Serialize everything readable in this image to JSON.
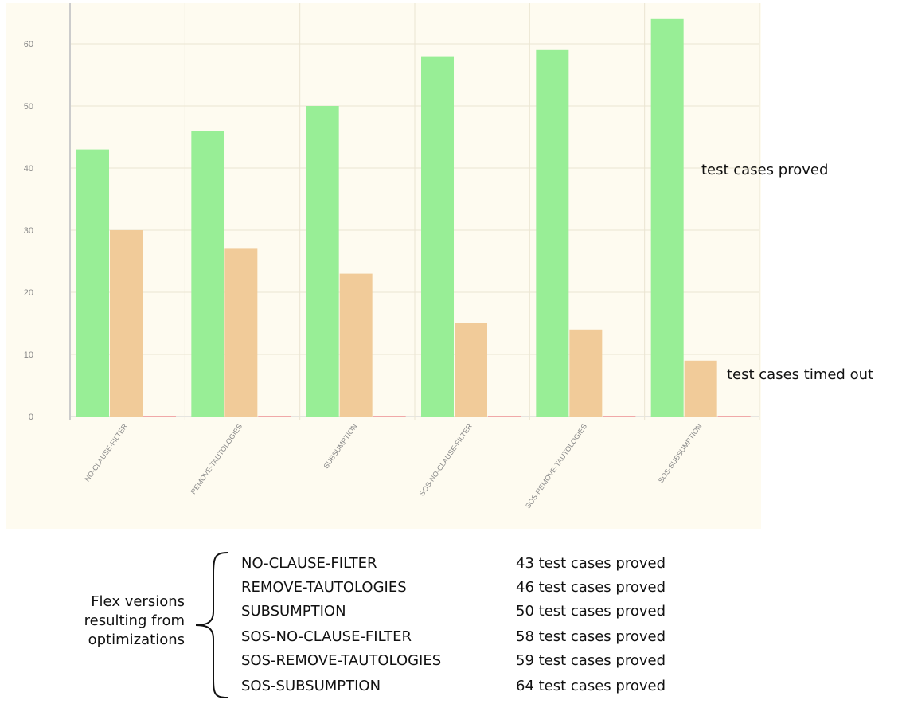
{
  "chart_data": {
    "type": "bar",
    "categories": [
      "NO-CLAUSE-FILTER",
      "REMOVE-TAUTOLOGIES",
      "SUBSUMPTION",
      "SOS-NO-CLAUSE-FILTER",
      "SOS-REMOVE-TAUTOLOGIES",
      "SOS-SUBSUMPTION"
    ],
    "series": [
      {
        "name": "test cases proved",
        "values": [
          43,
          46,
          50,
          58,
          59,
          64
        ],
        "color": "#98ee96"
      },
      {
        "name": "test cases timed out",
        "values": [
          30,
          27,
          23,
          15,
          14,
          9
        ],
        "color": "#f1cb99"
      },
      {
        "name": "",
        "values": [
          0,
          0,
          0,
          0,
          0,
          0
        ],
        "color": "#f0a8a8"
      }
    ],
    "yticks": [
      0,
      10,
      20,
      30,
      40,
      50,
      60
    ],
    "ylim": [
      0,
      64
    ],
    "grid": true,
    "title": "",
    "xlabel": "",
    "ylabel": ""
  },
  "annotations": {
    "proved": "test cases proved",
    "timed_out": "test cases timed out"
  },
  "legend": {
    "caption_lines": [
      "Flex versions",
      "resulting from",
      "optimizations"
    ],
    "rows": [
      {
        "name": "NO-CLAUSE-FILTER",
        "desc": "43 test cases proved"
      },
      {
        "name": "REMOVE-TAUTOLOGIES",
        "desc": "46 test cases proved"
      },
      {
        "name": "SUBSUMPTION",
        "desc": "50 test cases proved"
      },
      {
        "name": "SOS-NO-CLAUSE-FILTER",
        "desc": "58 test cases proved"
      },
      {
        "name": "SOS-REMOVE-TAUTOLOGIES",
        "desc": "59 test cases proved"
      },
      {
        "name": "SOS-SUBSUMPTION",
        "desc": "64 test cases proved"
      }
    ]
  }
}
